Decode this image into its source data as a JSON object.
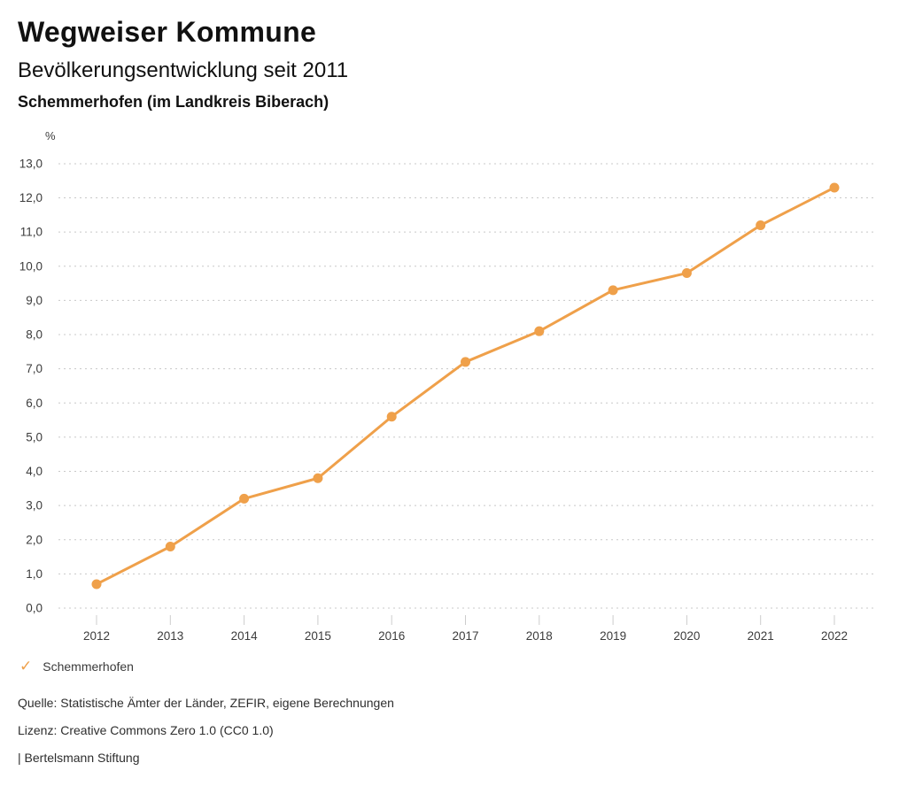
{
  "header": {
    "title": "Wegweiser Kommune",
    "subtitle": "Bevölkerungsentwicklung seit 2011",
    "location": "Schemmerhofen (im Landkreis Biberach)"
  },
  "chart_data": {
    "type": "line",
    "title": "Bevölkerungsentwicklung seit 2011",
    "unit_label": "%",
    "categories": [
      "2012",
      "2013",
      "2014",
      "2015",
      "2016",
      "2017",
      "2018",
      "2019",
      "2020",
      "2021",
      "2022"
    ],
    "series": [
      {
        "name": "Schemmerhofen",
        "values": [
          0.7,
          1.8,
          3.2,
          3.8,
          5.6,
          7.2,
          8.1,
          9.3,
          9.8,
          11.2,
          12.3
        ],
        "color": "#efa04a",
        "markers": true
      }
    ],
    "ylim": [
      0,
      13
    ],
    "ytick_step": 1,
    "ytick_labels": [
      "0,0",
      "1,0",
      "2,0",
      "3,0",
      "4,0",
      "5,0",
      "6,0",
      "7,0",
      "8,0",
      "9,0",
      "10,0",
      "11,0",
      "12,0",
      "13,0"
    ],
    "xlabel": "",
    "ylabel": "%",
    "grid": "horizontal-dotted",
    "legend_position": "bottom-left"
  },
  "legend": {
    "check_icon": "✓",
    "label": "Schemmerhofen"
  },
  "footer": {
    "source": "Quelle: Statistische Ämter der Länder, ZEFIR, eigene Berechnungen",
    "license": "Lizenz: Creative Commons Zero 1.0 (CC0 1.0)",
    "attribution": "| Bertelsmann Stiftung"
  },
  "colors": {
    "accent": "#efa04a",
    "grid": "#c8c8c8",
    "tick": "#cccccc",
    "axis_text": "#3c3c3c",
    "heading_text": "#111111",
    "footer_text": "#2e2e2e"
  }
}
